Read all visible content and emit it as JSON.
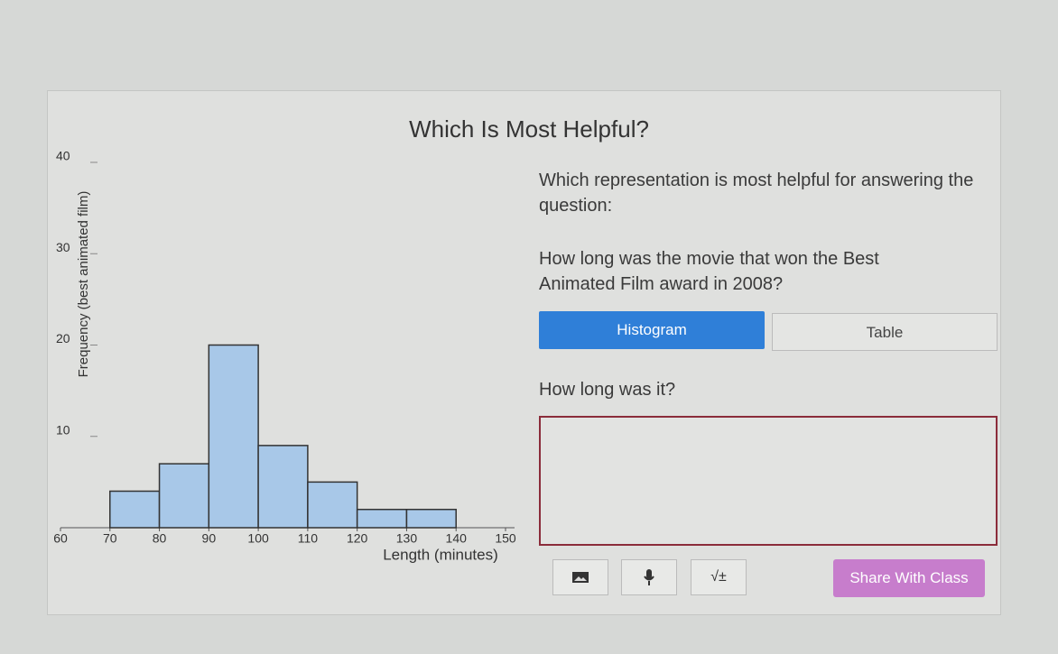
{
  "title": "Which Is Most Helpful?",
  "chart_data": {
    "type": "histogram",
    "bins": [
      70,
      80,
      90,
      100,
      110,
      120,
      130,
      140
    ],
    "values": [
      4,
      7,
      20,
      9,
      5,
      2,
      2
    ],
    "color": "#a8c8e8",
    "xlabel": "Length (minutes)",
    "ylabel": "Frequency (best animated film)",
    "xlim": [
      60,
      150
    ],
    "xticks": [
      60,
      70,
      80,
      90,
      100,
      110,
      120,
      130,
      140,
      150
    ],
    "ylim": [
      0,
      40
    ],
    "yticks": [
      10,
      20,
      30,
      40
    ]
  },
  "prompt": "Which representation is most helpful for answering the question:",
  "question": "How long was the movie that won the Best Animated Film award in 2008?",
  "choices": [
    "Histogram",
    "Table"
  ],
  "answer_prompt": "How long was it?",
  "math_button": "√±",
  "share_button": "Share With Class"
}
